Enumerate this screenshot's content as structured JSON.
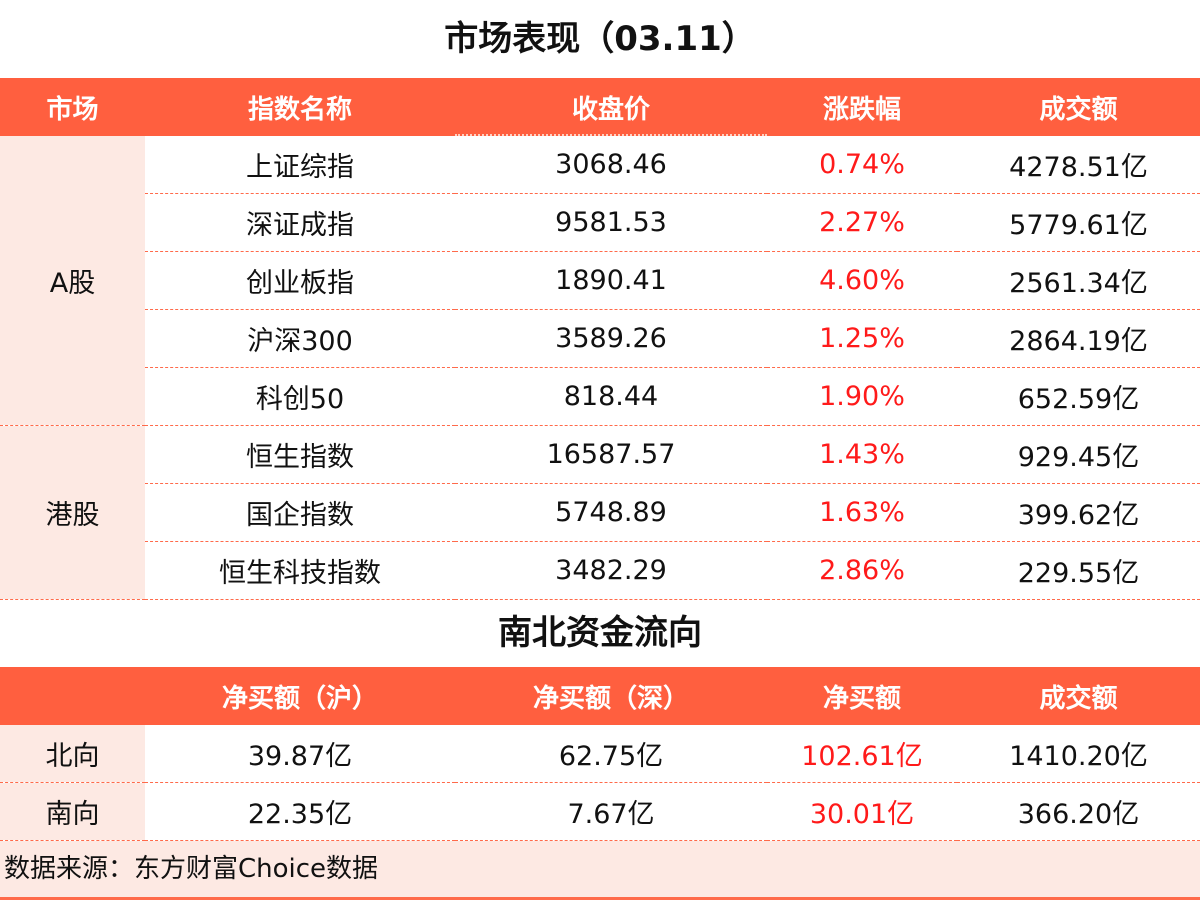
{
  "title": "市场表现（03.11）",
  "market_table": {
    "headers": [
      "市场",
      "指数名称",
      "收盘价",
      "涨跌幅",
      "成交额"
    ],
    "groups": [
      {
        "market": "A股",
        "rows": [
          {
            "name": "上证综指",
            "close": "3068.46",
            "change": "0.74%",
            "volume": "4278.51亿"
          },
          {
            "name": "深证成指",
            "close": "9581.53",
            "change": "2.27%",
            "volume": "5779.61亿"
          },
          {
            "name": "创业板指",
            "close": "1890.41",
            "change": "4.60%",
            "volume": "2561.34亿"
          },
          {
            "name": "沪深300",
            "close": "3589.26",
            "change": "1.25%",
            "volume": "2864.19亿"
          },
          {
            "name": "科创50",
            "close": "818.44",
            "change": "1.90%",
            "volume": "652.59亿"
          }
        ]
      },
      {
        "market": "港股",
        "rows": [
          {
            "name": "恒生指数",
            "close": "16587.57",
            "change": "1.43%",
            "volume": "929.45亿"
          },
          {
            "name": "国企指数",
            "close": "5748.89",
            "change": "1.63%",
            "volume": "399.62亿"
          },
          {
            "name": "恒生科技指数",
            "close": "3482.29",
            "change": "2.86%",
            "volume": "229.55亿"
          }
        ]
      }
    ]
  },
  "flow_title": "南北资金流向",
  "flow_table": {
    "headers": [
      "",
      "净买额（沪）",
      "净买额（深）",
      "净买额",
      "成交额"
    ],
    "rows": [
      {
        "direction": "北向",
        "sh": "39.87亿",
        "sz": "62.75亿",
        "net": "102.61亿",
        "volume": "1410.20亿"
      },
      {
        "direction": "南向",
        "sh": "22.35亿",
        "sz": "7.67亿",
        "net": "30.01亿",
        "volume": "366.20亿"
      }
    ]
  },
  "source": "数据来源：东方财富Choice数据",
  "colors": {
    "header_bg": "#ff5f3f",
    "market_cell_bg": "#fde9e3",
    "up_text": "#ff1a1a"
  }
}
